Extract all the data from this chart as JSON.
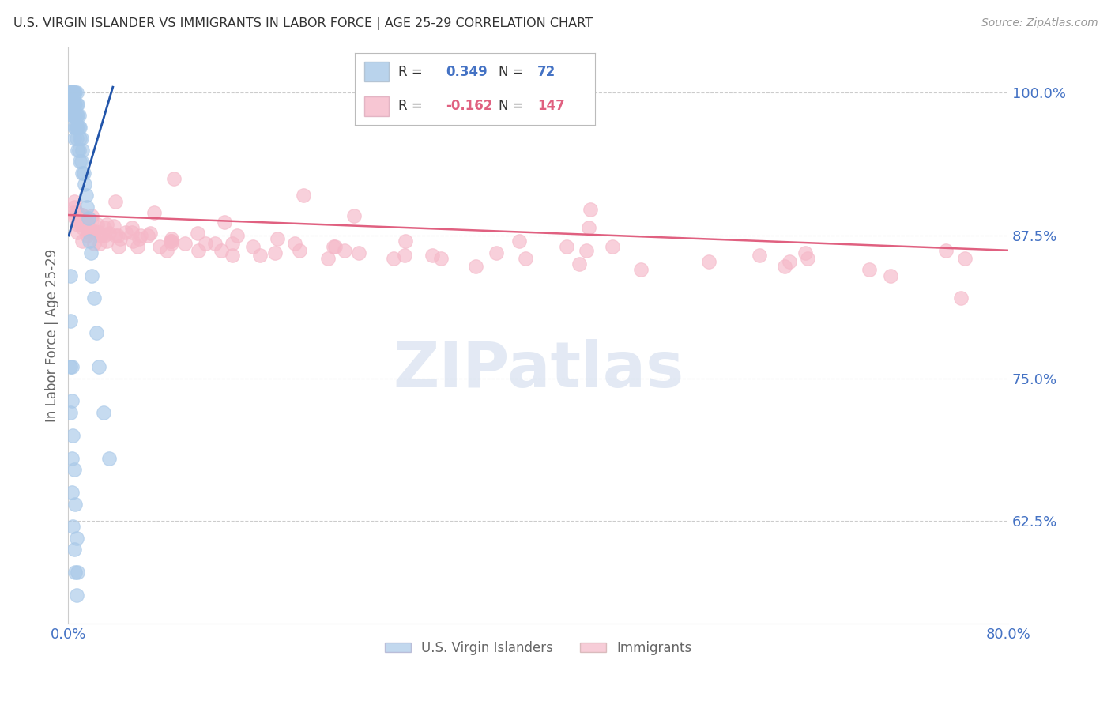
{
  "title": "U.S. VIRGIN ISLANDER VS IMMIGRANTS IN LABOR FORCE | AGE 25-29 CORRELATION CHART",
  "source": "Source: ZipAtlas.com",
  "ylabel": "In Labor Force | Age 25-29",
  "ytick_labels": [
    "62.5%",
    "75.0%",
    "87.5%",
    "100.0%"
  ],
  "ytick_values": [
    0.625,
    0.75,
    0.875,
    1.0
  ],
  "xlim": [
    0.0,
    0.8
  ],
  "ylim": [
    0.535,
    1.04
  ],
  "watermark": "ZIPatlas",
  "blue_color": "#a8c8e8",
  "blue_face_color": "#a8c8e8",
  "pink_color": "#f5b8c8",
  "blue_line_color": "#2255aa",
  "pink_line_color": "#e06080",
  "title_color": "#333333",
  "axis_label_color": "#666666",
  "tick_label_color": "#4472c4",
  "background_color": "#ffffff",
  "grid_color": "#cccccc",
  "legend_blue_text": "#4472c4",
  "legend_pink_text": "#e06080",
  "vi_x": [
    0.001,
    0.002,
    0.002,
    0.002,
    0.002,
    0.003,
    0.003,
    0.003,
    0.003,
    0.003,
    0.004,
    0.004,
    0.004,
    0.004,
    0.005,
    0.005,
    0.005,
    0.005,
    0.005,
    0.006,
    0.006,
    0.006,
    0.006,
    0.007,
    0.007,
    0.007,
    0.007,
    0.007,
    0.008,
    0.008,
    0.008,
    0.008,
    0.009,
    0.009,
    0.009,
    0.01,
    0.01,
    0.01,
    0.011,
    0.011,
    0.012,
    0.012,
    0.013,
    0.014,
    0.015,
    0.016,
    0.017,
    0.018,
    0.019,
    0.02,
    0.022,
    0.024,
    0.026,
    0.03,
    0.035,
    0.002,
    0.002,
    0.003,
    0.003,
    0.004,
    0.005,
    0.006,
    0.007,
    0.008,
    0.002,
    0.002,
    0.003,
    0.003,
    0.004,
    0.005,
    0.006,
    0.007
  ],
  "vi_y": [
    1.0,
    1.0,
    1.0,
    1.0,
    0.99,
    1.0,
    1.0,
    1.0,
    0.99,
    0.98,
    1.0,
    1.0,
    0.99,
    0.98,
    1.0,
    0.99,
    0.98,
    0.97,
    0.96,
    1.0,
    0.99,
    0.98,
    0.97,
    1.0,
    0.99,
    0.98,
    0.97,
    0.96,
    0.99,
    0.98,
    0.97,
    0.95,
    0.98,
    0.97,
    0.95,
    0.97,
    0.96,
    0.94,
    0.96,
    0.94,
    0.95,
    0.93,
    0.93,
    0.92,
    0.91,
    0.9,
    0.89,
    0.87,
    0.86,
    0.84,
    0.82,
    0.79,
    0.76,
    0.72,
    0.68,
    0.84,
    0.8,
    0.76,
    0.73,
    0.7,
    0.67,
    0.64,
    0.61,
    0.58,
    0.76,
    0.72,
    0.68,
    0.65,
    0.62,
    0.6,
    0.58,
    0.56
  ],
  "imm_x": [
    0.004,
    0.005,
    0.006,
    0.007,
    0.008,
    0.009,
    0.01,
    0.011,
    0.012,
    0.014,
    0.016,
    0.018,
    0.02,
    0.022,
    0.025,
    0.028,
    0.031,
    0.035,
    0.039,
    0.044,
    0.049,
    0.055,
    0.062,
    0.07,
    0.078,
    0.088,
    0.099,
    0.111,
    0.125,
    0.14,
    0.157,
    0.176,
    0.197,
    0.221,
    0.247,
    0.277,
    0.31,
    0.347,
    0.389,
    0.435,
    0.487,
    0.545,
    0.61,
    0.682,
    0.763,
    0.005,
    0.007,
    0.009,
    0.012,
    0.015,
    0.02,
    0.026,
    0.033,
    0.042,
    0.054,
    0.068,
    0.087,
    0.11,
    0.14,
    0.178,
    0.226,
    0.287,
    0.364,
    0.463,
    0.588,
    0.747,
    0.008,
    0.011,
    0.016,
    0.022,
    0.031,
    0.043,
    0.06,
    0.084,
    0.117,
    0.163,
    0.227,
    0.317,
    0.441,
    0.614,
    0.012,
    0.018,
    0.027,
    0.04,
    0.059,
    0.088,
    0.13,
    0.193,
    0.286,
    0.424,
    0.629,
    0.02,
    0.033,
    0.054,
    0.088,
    0.144,
    0.235,
    0.384,
    0.627,
    0.04,
    0.073,
    0.133,
    0.243,
    0.443,
    0.09,
    0.2,
    0.444,
    0.7,
    0.76
  ],
  "imm_y": [
    0.895,
    0.9,
    0.89,
    0.895,
    0.885,
    0.892,
    0.888,
    0.893,
    0.882,
    0.89,
    0.887,
    0.88,
    0.892,
    0.878,
    0.885,
    0.875,
    0.882,
    0.877,
    0.883,
    0.872,
    0.878,
    0.87,
    0.875,
    0.877,
    0.865,
    0.872,
    0.868,
    0.862,
    0.868,
    0.858,
    0.865,
    0.86,
    0.862,
    0.855,
    0.86,
    0.855,
    0.858,
    0.848,
    0.855,
    0.85,
    0.845,
    0.852,
    0.848,
    0.845,
    0.855,
    0.905,
    0.895,
    0.888,
    0.893,
    0.882,
    0.888,
    0.878,
    0.885,
    0.875,
    0.882,
    0.875,
    0.87,
    0.877,
    0.868,
    0.872,
    0.865,
    0.87,
    0.86,
    0.865,
    0.858,
    0.862,
    0.878,
    0.885,
    0.875,
    0.868,
    0.875,
    0.865,
    0.872,
    0.862,
    0.868,
    0.858,
    0.865,
    0.855,
    0.862,
    0.852,
    0.87,
    0.878,
    0.868,
    0.875,
    0.865,
    0.87,
    0.862,
    0.868,
    0.858,
    0.865,
    0.855,
    0.88,
    0.87,
    0.878,
    0.868,
    0.875,
    0.862,
    0.87,
    0.86,
    0.905,
    0.895,
    0.887,
    0.892,
    0.882,
    0.925,
    0.91,
    0.898,
    0.84,
    0.82
  ],
  "vi_line_x": [
    0.0005,
    0.038
  ],
  "vi_line_y": [
    0.875,
    1.005
  ],
  "imm_line_x": [
    0.0,
    0.8
  ],
  "imm_line_y": [
    0.893,
    0.862
  ]
}
